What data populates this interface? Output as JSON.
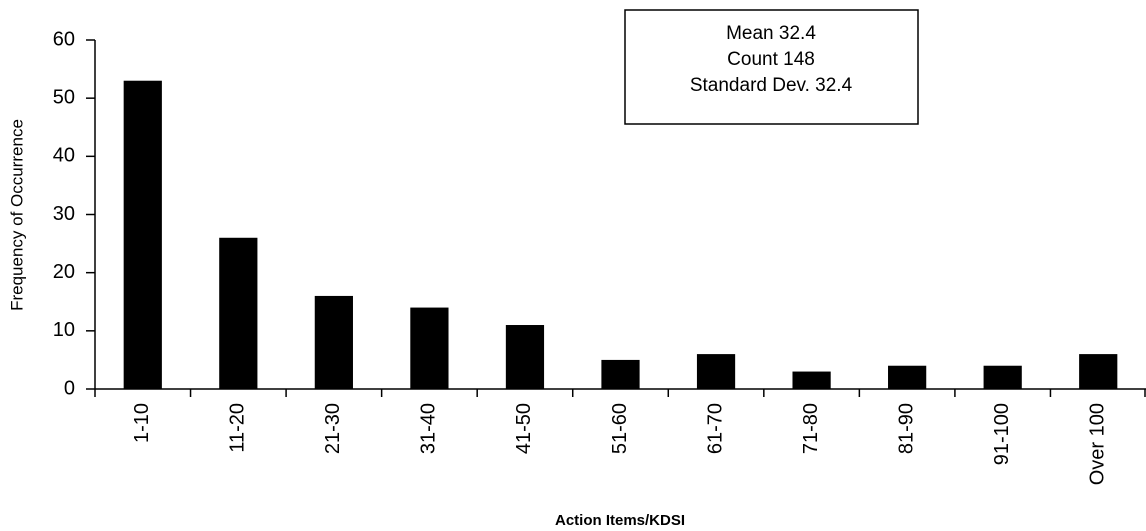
{
  "chart_data": {
    "type": "bar",
    "x_label": "Action Items/KDSI",
    "y_label": "Frequency of Occurrence",
    "annotations": [
      "Mean  32.4",
      "Count 148",
      "Standard Dev. 32.4"
    ],
    "categories": [
      "1-10",
      "11-20",
      "21-30",
      "31-40",
      "41-50",
      "51-60",
      "61-70",
      "71-80",
      "81-90",
      "91-100",
      "Over 100"
    ],
    "values": [
      53,
      26,
      16,
      14,
      11,
      5,
      6,
      3,
      4,
      4,
      6
    ],
    "color": "#000000",
    "ylim": [
      0,
      60
    ],
    "yticks": [
      0,
      10,
      20,
      30,
      40,
      50,
      60
    ],
    "grid": false
  }
}
